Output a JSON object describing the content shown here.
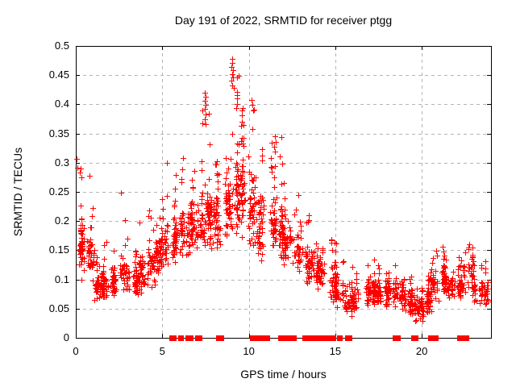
{
  "window": {
    "background": "#ffffff"
  },
  "colors": {
    "marker": "#ff0000",
    "grid": "#b4b4b4",
    "axis": "#000000",
    "text": "#000000"
  },
  "chart_data": {
    "type": "scatter",
    "title": "Day 191 of 2022, SRMTID for receiver ptgg",
    "xlabel": "GPS time / hours",
    "ylabel": "SRMTID / TECUs",
    "xlim": [
      0,
      24
    ],
    "ylim": [
      0,
      0.5
    ],
    "grid": true,
    "legend": "none",
    "marker": {
      "shape": "plus",
      "color": "#ff0000",
      "size": 7
    },
    "xticks": [
      {
        "v": 0,
        "label": "0"
      },
      {
        "v": 5,
        "label": "5"
      },
      {
        "v": 10,
        "label": "10"
      },
      {
        "v": 15,
        "label": "15"
      },
      {
        "v": 20,
        "label": "20"
      }
    ],
    "yticks": [
      {
        "v": 0,
        "label": "0"
      },
      {
        "v": 0.05,
        "label": "0.05"
      },
      {
        "v": 0.1,
        "label": "0.1"
      },
      {
        "v": 0.15,
        "label": "0.15"
      },
      {
        "v": 0.2,
        "label": "0.2"
      },
      {
        "v": 0.25,
        "label": "0.25"
      },
      {
        "v": 0.3,
        "label": "0.3"
      },
      {
        "v": 0.35,
        "label": "0.35"
      },
      {
        "v": 0.4,
        "label": "0.4"
      },
      {
        "v": 0.45,
        "label": "0.45"
      },
      {
        "v": 0.5,
        "label": "0.5"
      }
    ],
    "seed": 191,
    "bins_format": [
      "x_start_h",
      "x_end_h",
      "n_points",
      "core_y_min",
      "core_y_max",
      "tail_y_max",
      "tail_fraction"
    ],
    "bins": [
      [
        0.0,
        0.5,
        55,
        0.09,
        0.22,
        0.31,
        0.14
      ],
      [
        0.5,
        1.0,
        40,
        0.09,
        0.18,
        0.28,
        0.12
      ],
      [
        1.0,
        1.5,
        42,
        0.06,
        0.12,
        0.14,
        0.08
      ],
      [
        1.5,
        2.0,
        42,
        0.06,
        0.12,
        0.17,
        0.1
      ],
      [
        2.0,
        2.5,
        38,
        0.06,
        0.12,
        0.15,
        0.1
      ],
      [
        2.5,
        3.0,
        40,
        0.07,
        0.14,
        0.25,
        0.12
      ],
      [
        3.0,
        3.5,
        38,
        0.06,
        0.13,
        0.16,
        0.08
      ],
      [
        3.5,
        4.0,
        40,
        0.07,
        0.15,
        0.24,
        0.12
      ],
      [
        4.0,
        4.5,
        38,
        0.08,
        0.17,
        0.27,
        0.1
      ],
      [
        4.5,
        5.0,
        36,
        0.1,
        0.18,
        0.25,
        0.1
      ],
      [
        5.0,
        5.5,
        40,
        0.11,
        0.2,
        0.3,
        0.1
      ],
      [
        5.5,
        6.0,
        40,
        0.12,
        0.21,
        0.28,
        0.12
      ],
      [
        6.0,
        6.5,
        45,
        0.13,
        0.23,
        0.31,
        0.12
      ],
      [
        6.5,
        7.0,
        45,
        0.14,
        0.24,
        0.3,
        0.12
      ],
      [
        7.0,
        7.5,
        45,
        0.14,
        0.26,
        0.4,
        0.12
      ],
      [
        7.5,
        8.0,
        45,
        0.15,
        0.27,
        0.4,
        0.1
      ],
      [
        8.0,
        8.5,
        45,
        0.14,
        0.27,
        0.35,
        0.12
      ],
      [
        8.5,
        9.0,
        50,
        0.16,
        0.3,
        0.46,
        0.14
      ],
      [
        9.0,
        9.5,
        50,
        0.17,
        0.33,
        0.45,
        0.14
      ],
      [
        9.5,
        10.0,
        46,
        0.17,
        0.32,
        0.41,
        0.12
      ],
      [
        10.0,
        10.5,
        45,
        0.15,
        0.29,
        0.41,
        0.1
      ],
      [
        10.5,
        11.0,
        45,
        0.12,
        0.27,
        0.35,
        0.1
      ],
      [
        11.0,
        11.5,
        45,
        0.14,
        0.25,
        0.34,
        0.1
      ],
      [
        11.5,
        12.0,
        42,
        0.13,
        0.24,
        0.35,
        0.1
      ],
      [
        12.0,
        12.5,
        40,
        0.12,
        0.21,
        0.3,
        0.1
      ],
      [
        12.5,
        13.0,
        36,
        0.11,
        0.19,
        0.25,
        0.1
      ],
      [
        13.0,
        13.5,
        40,
        0.09,
        0.16,
        0.22,
        0.1
      ],
      [
        13.5,
        14.0,
        36,
        0.09,
        0.15,
        0.2,
        0.1
      ],
      [
        14.0,
        14.5,
        32,
        0.08,
        0.14,
        0.18,
        0.1
      ],
      [
        14.5,
        15.0,
        36,
        0.06,
        0.13,
        0.17,
        0.1
      ],
      [
        15.0,
        15.5,
        36,
        0.05,
        0.11,
        0.18,
        0.1
      ],
      [
        15.5,
        16.0,
        34,
        0.03,
        0.1,
        0.13,
        0.08
      ],
      [
        16.0,
        16.5,
        30,
        0.04,
        0.1,
        0.12,
        0.08
      ],
      [
        16.5,
        17.0,
        34,
        0.05,
        0.11,
        0.13,
        0.08
      ],
      [
        17.0,
        17.5,
        36,
        0.05,
        0.11,
        0.14,
        0.08
      ],
      [
        17.5,
        18.0,
        40,
        0.05,
        0.11,
        0.13,
        0.08
      ],
      [
        18.0,
        18.5,
        40,
        0.05,
        0.11,
        0.15,
        0.08
      ],
      [
        18.5,
        19.0,
        40,
        0.04,
        0.1,
        0.12,
        0.08
      ],
      [
        19.0,
        19.5,
        40,
        0.04,
        0.09,
        0.11,
        0.08
      ],
      [
        19.5,
        20.0,
        46,
        0.025,
        0.08,
        0.1,
        0.08
      ],
      [
        20.0,
        20.5,
        36,
        0.03,
        0.09,
        0.11,
        0.08
      ],
      [
        20.5,
        21.0,
        36,
        0.06,
        0.12,
        0.15,
        0.1
      ],
      [
        21.0,
        21.5,
        40,
        0.07,
        0.13,
        0.165,
        0.1
      ],
      [
        21.5,
        22.0,
        30,
        0.06,
        0.11,
        0.13,
        0.08
      ],
      [
        22.0,
        22.5,
        34,
        0.06,
        0.12,
        0.14,
        0.1
      ],
      [
        22.5,
        23.0,
        40,
        0.07,
        0.14,
        0.17,
        0.1
      ],
      [
        23.0,
        23.5,
        30,
        0.05,
        0.11,
        0.13,
        0.08
      ],
      [
        23.5,
        23.95,
        22,
        0.05,
        0.1,
        0.15,
        0.1
      ]
    ],
    "highlight_points": [
      [
        9.02,
        0.478
      ],
      [
        9.05,
        0.471
      ],
      [
        8.99,
        0.464
      ],
      [
        9.07,
        0.458
      ],
      [
        9.03,
        0.452
      ],
      [
        9.1,
        0.446
      ],
      [
        9.0,
        0.44
      ],
      [
        9.05,
        0.433
      ],
      [
        9.12,
        0.428
      ],
      [
        7.45,
        0.42
      ],
      [
        7.5,
        0.413
      ],
      [
        7.47,
        0.406
      ],
      [
        7.52,
        0.399
      ],
      [
        7.44,
        0.392
      ],
      [
        7.49,
        0.383
      ],
      [
        7.46,
        0.374
      ],
      [
        7.51,
        0.366
      ],
      [
        9.3,
        0.41
      ],
      [
        9.34,
        0.401
      ],
      [
        9.28,
        0.394
      ],
      [
        9.58,
        0.39
      ],
      [
        9.62,
        0.381
      ],
      [
        10.15,
        0.408
      ],
      [
        10.2,
        0.399
      ],
      [
        10.24,
        0.39
      ],
      [
        0.04,
        0.307
      ],
      [
        0.07,
        0.292
      ],
      [
        11.5,
        0.345
      ],
      [
        11.55,
        0.336
      ],
      [
        11.46,
        0.328
      ],
      [
        5.25,
        0.3
      ],
      [
        6.2,
        0.308
      ]
    ],
    "zero_marker_runs_hours": [
      [
        5.48,
        5.74
      ],
      [
        6.0,
        6.07
      ],
      [
        6.1,
        6.17
      ],
      [
        6.41,
        6.7
      ],
      [
        6.97,
        7.24
      ],
      [
        8.22,
        8.5
      ],
      [
        10.18,
        10.46
      ],
      [
        10.5,
        10.84
      ],
      [
        10.9,
        11.12
      ],
      [
        11.8,
        12.17
      ],
      [
        12.2,
        12.5
      ],
      [
        12.56,
        12.68
      ],
      [
        13.2,
        13.58
      ],
      [
        13.65,
        13.8
      ],
      [
        14.0,
        14.23
      ],
      [
        14.27,
        14.38
      ],
      [
        14.6,
        14.8
      ],
      [
        14.84,
        14.98
      ],
      [
        15.21,
        15.35
      ],
      [
        15.68,
        15.87
      ],
      [
        18.4,
        18.7
      ],
      [
        19.5,
        19.73
      ],
      [
        20.45,
        20.9
      ],
      [
        22.15,
        22.4
      ],
      [
        22.5,
        22.65
      ]
    ]
  }
}
